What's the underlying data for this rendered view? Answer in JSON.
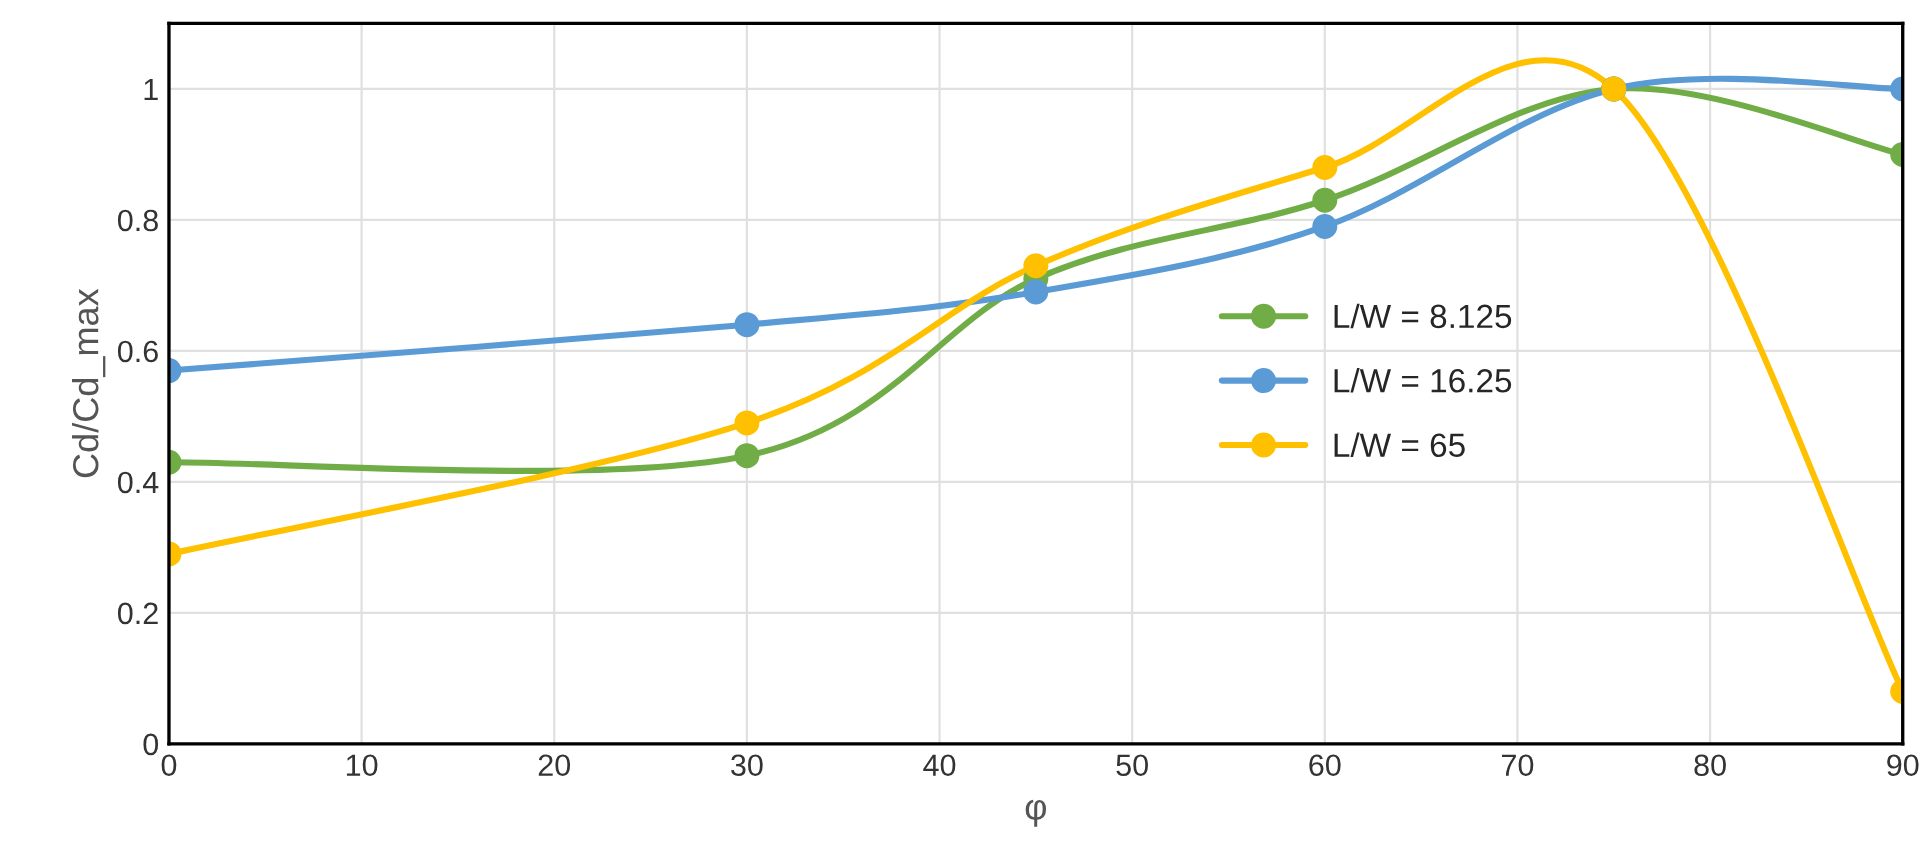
{
  "chart_data": {
    "type": "line",
    "xlabel": "φ",
    "ylabel": "Cd/Cd_max",
    "xlim": [
      0,
      90
    ],
    "xticks": [
      0,
      10,
      20,
      30,
      40,
      50,
      60,
      70,
      80,
      90
    ],
    "ylim": [
      0,
      1.1
    ],
    "yticks": [
      0,
      0.2,
      0.4,
      0.6,
      0.8,
      1
    ],
    "grid": true,
    "legend": "right",
    "marker": "circle",
    "line_style": "solid",
    "x": [
      0,
      30,
      45,
      60,
      75,
      90
    ],
    "series": [
      {
        "name": "L/W = 8.125",
        "color": "#70ad47",
        "values": [
          0.43,
          0.44,
          0.71,
          0.83,
          1.0,
          0.9
        ]
      },
      {
        "name": "L/W = 16.25",
        "color": "#5b9bd5",
        "values": [
          0.57,
          0.64,
          0.69,
          0.79,
          1.0,
          1.0
        ]
      },
      {
        "name": "L/W = 65",
        "color": "#ffc000",
        "values": [
          0.29,
          0.49,
          0.73,
          0.88,
          1.0,
          0.08
        ]
      }
    ]
  }
}
